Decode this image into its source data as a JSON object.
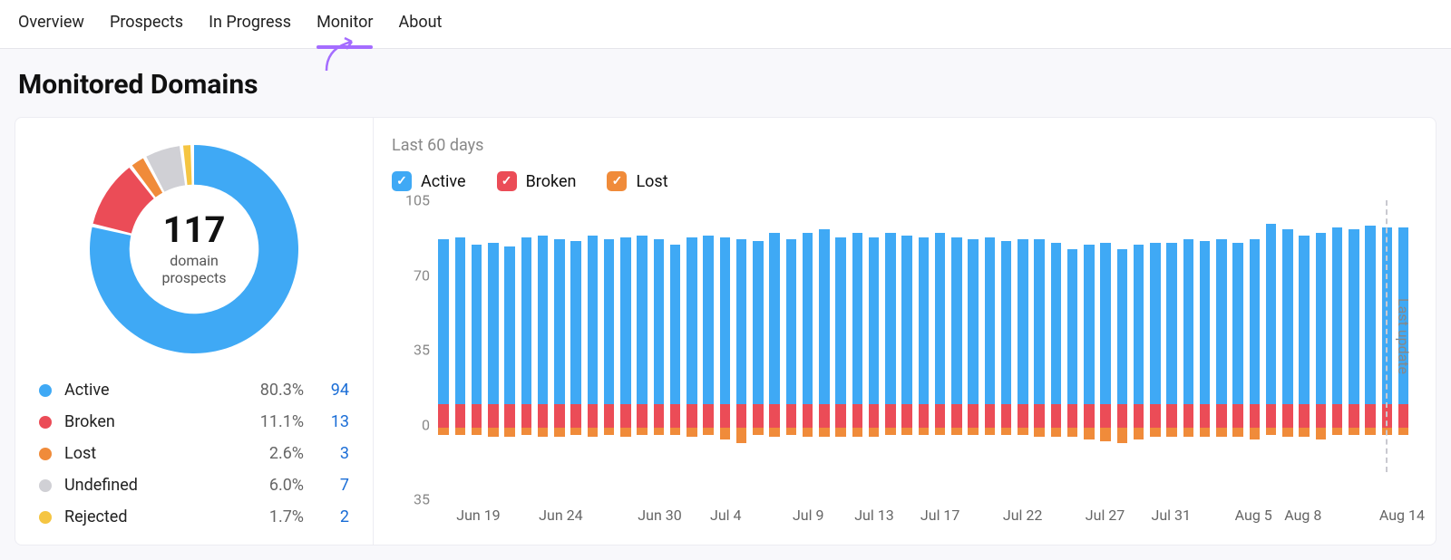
{
  "tabs": [
    {
      "label": "Overview",
      "active": false
    },
    {
      "label": "Prospects",
      "active": false
    },
    {
      "label": "In Progress",
      "active": false
    },
    {
      "label": "Monitor",
      "active": true
    },
    {
      "label": "About",
      "active": false
    }
  ],
  "page_title": "Monitored Domains",
  "accent_underline_color": "#a46cff",
  "donut": {
    "total": "117",
    "subtitle_line1": "domain",
    "subtitle_line2": "prospects",
    "inner_radius_ratio": 0.62,
    "segments": [
      {
        "key": "active",
        "label": "Active",
        "pct": "80.3%",
        "count": "94",
        "value": 80.3,
        "color": "#3fa9f5"
      },
      {
        "key": "broken",
        "label": "Broken",
        "pct": "11.1%",
        "count": "13",
        "value": 11.1,
        "color": "#eb4c57"
      },
      {
        "key": "lost",
        "label": "Lost",
        "pct": "2.6%",
        "count": "3",
        "value": 2.6,
        "color": "#f08b3a"
      },
      {
        "key": "undefined",
        "label": "Undefined",
        "pct": "6.0%",
        "count": "7",
        "value": 6.0,
        "color": "#d0d0d5"
      },
      {
        "key": "rejected",
        "label": "Rejected",
        "pct": "1.7%",
        "count": "2",
        "value": 1.7,
        "color": "#f5c542"
      }
    ],
    "count_link_color": "#1a6dd6"
  },
  "bar_chart": {
    "range_label": "Last 60 days",
    "last_update_label": "Last update",
    "series": [
      {
        "key": "active",
        "label": "Active",
        "color": "#3fa9f5"
      },
      {
        "key": "broken",
        "label": "Broken",
        "color": "#eb4c57"
      },
      {
        "key": "lost",
        "label": "Lost",
        "color": "#f08b3a"
      }
    ],
    "y": {
      "max_pos": 105,
      "max_neg": 35,
      "ticks": [
        105,
        70,
        35,
        0,
        -35
      ],
      "tick_labels": [
        "105",
        "70",
        "35",
        "0",
        "35"
      ]
    },
    "x_labels": [
      {
        "idx": 2,
        "text": "Jun 19"
      },
      {
        "idx": 7,
        "text": "Jun 24"
      },
      {
        "idx": 13,
        "text": "Jun 30"
      },
      {
        "idx": 17,
        "text": "Jul 4"
      },
      {
        "idx": 22,
        "text": "Jul 9"
      },
      {
        "idx": 26,
        "text": "Jul 13"
      },
      {
        "idx": 30,
        "text": "Jul 17"
      },
      {
        "idx": 35,
        "text": "Jul 22"
      },
      {
        "idx": 40,
        "text": "Jul 27"
      },
      {
        "idx": 44,
        "text": "Jul 31"
      },
      {
        "idx": 49,
        "text": "Aug 5"
      },
      {
        "idx": 52,
        "text": "Aug 8"
      },
      {
        "idx": 58,
        "text": "Aug 14"
      }
    ],
    "last_update_idx": 57,
    "days": [
      {
        "a": 85,
        "b": 12,
        "l": 4
      },
      {
        "a": 86,
        "b": 12,
        "l": 4
      },
      {
        "a": 82,
        "b": 12,
        "l": 4
      },
      {
        "a": 83,
        "b": 12,
        "l": 5
      },
      {
        "a": 81,
        "b": 12,
        "l": 5
      },
      {
        "a": 86,
        "b": 12,
        "l": 4
      },
      {
        "a": 87,
        "b": 12,
        "l": 5
      },
      {
        "a": 85,
        "b": 12,
        "l": 5
      },
      {
        "a": 84,
        "b": 12,
        "l": 4
      },
      {
        "a": 87,
        "b": 12,
        "l": 5
      },
      {
        "a": 85,
        "b": 12,
        "l": 4
      },
      {
        "a": 86,
        "b": 12,
        "l": 5
      },
      {
        "a": 87,
        "b": 12,
        "l": 4
      },
      {
        "a": 85,
        "b": 12,
        "l": 4
      },
      {
        "a": 82,
        "b": 12,
        "l": 4
      },
      {
        "a": 86,
        "b": 12,
        "l": 5
      },
      {
        "a": 87,
        "b": 12,
        "l": 4
      },
      {
        "a": 86,
        "b": 12,
        "l": 6
      },
      {
        "a": 85,
        "b": 12,
        "l": 8
      },
      {
        "a": 84,
        "b": 12,
        "l": 4
      },
      {
        "a": 88,
        "b": 12,
        "l": 5
      },
      {
        "a": 85,
        "b": 12,
        "l": 4
      },
      {
        "a": 88,
        "b": 12,
        "l": 5
      },
      {
        "a": 90,
        "b": 12,
        "l": 5
      },
      {
        "a": 86,
        "b": 12,
        "l": 5
      },
      {
        "a": 88,
        "b": 12,
        "l": 5
      },
      {
        "a": 86,
        "b": 12,
        "l": 5
      },
      {
        "a": 88,
        "b": 12,
        "l": 4
      },
      {
        "a": 87,
        "b": 12,
        "l": 4
      },
      {
        "a": 86,
        "b": 12,
        "l": 4
      },
      {
        "a": 88,
        "b": 12,
        "l": 4
      },
      {
        "a": 86,
        "b": 12,
        "l": 4
      },
      {
        "a": 85,
        "b": 12,
        "l": 4
      },
      {
        "a": 86,
        "b": 12,
        "l": 4
      },
      {
        "a": 84,
        "b": 12,
        "l": 4
      },
      {
        "a": 85,
        "b": 12,
        "l": 4
      },
      {
        "a": 85,
        "b": 12,
        "l": 5
      },
      {
        "a": 83,
        "b": 12,
        "l": 5
      },
      {
        "a": 80,
        "b": 12,
        "l": 5
      },
      {
        "a": 82,
        "b": 12,
        "l": 6
      },
      {
        "a": 83,
        "b": 12,
        "l": 7
      },
      {
        "a": 80,
        "b": 12,
        "l": 8
      },
      {
        "a": 82,
        "b": 12,
        "l": 6
      },
      {
        "a": 83,
        "b": 12,
        "l": 5
      },
      {
        "a": 83,
        "b": 12,
        "l": 5
      },
      {
        "a": 85,
        "b": 12,
        "l": 5
      },
      {
        "a": 84,
        "b": 12,
        "l": 5
      },
      {
        "a": 85,
        "b": 12,
        "l": 5
      },
      {
        "a": 83,
        "b": 12,
        "l": 5
      },
      {
        "a": 85,
        "b": 12,
        "l": 6
      },
      {
        "a": 93,
        "b": 12,
        "l": 4
      },
      {
        "a": 90,
        "b": 12,
        "l": 5
      },
      {
        "a": 87,
        "b": 12,
        "l": 5
      },
      {
        "a": 88,
        "b": 12,
        "l": 6
      },
      {
        "a": 91,
        "b": 12,
        "l": 4
      },
      {
        "a": 90,
        "b": 12,
        "l": 4
      },
      {
        "a": 92,
        "b": 12,
        "l": 4
      },
      {
        "a": 91,
        "b": 12,
        "l": 4
      },
      {
        "a": 91,
        "b": 12,
        "l": 4
      }
    ]
  }
}
